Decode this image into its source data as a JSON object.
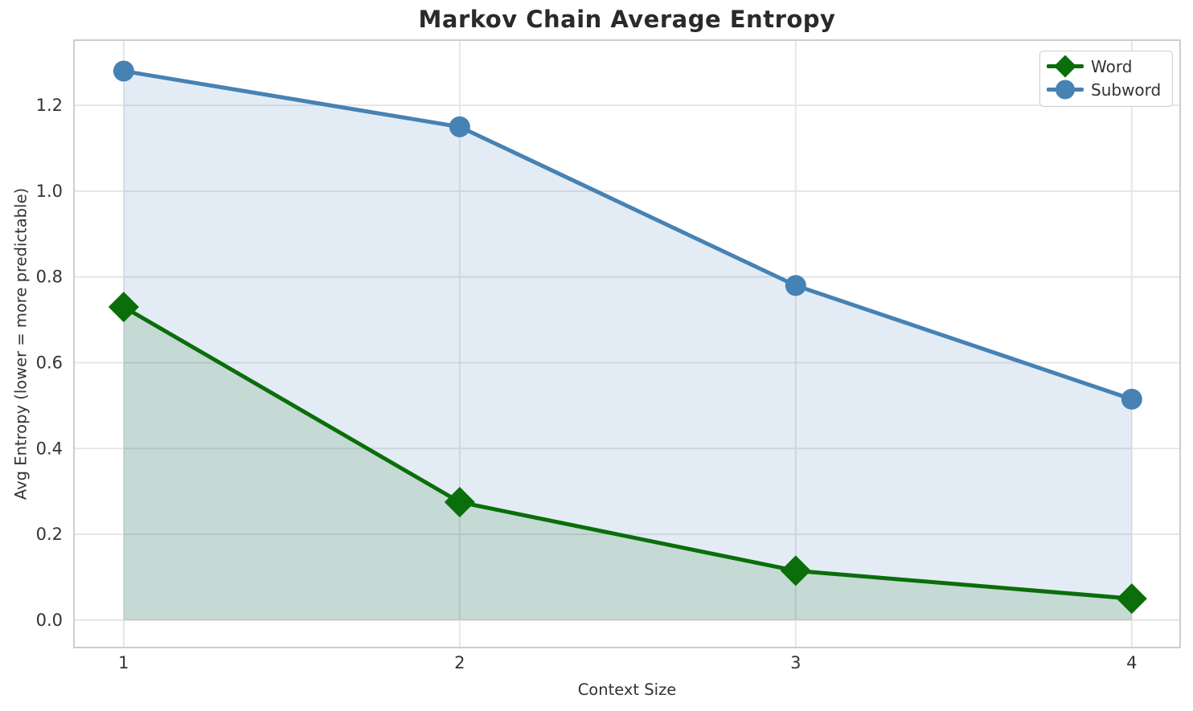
{
  "title": "Markov Chain Average Entropy",
  "chart_data": {
    "type": "line",
    "title": "Markov Chain Average Entropy",
    "xlabel": "Context Size",
    "ylabel": "Avg Entropy (lower = more predictable)",
    "x": [
      1,
      2,
      3,
      4
    ],
    "series": [
      {
        "name": "Word",
        "values": [
          0.73,
          0.275,
          0.115,
          0.05
        ],
        "color": "#0a6e0a",
        "fill_color": "rgba(0, 100, 0, 0.13)",
        "marker": "diamond",
        "area_fill": true
      },
      {
        "name": "Subword",
        "values": [
          1.28,
          1.15,
          0.78,
          0.515
        ],
        "color": "#4682b4",
        "fill_color": "rgba(70, 130, 180, 0.15)",
        "marker": "circle",
        "area_fill": true
      }
    ],
    "area_baseline": 0,
    "xlim": [
      0.852,
      4.144
    ],
    "ylim": [
      -0.064,
      1.352
    ],
    "xticks": [
      {
        "value": 1,
        "label": "1"
      },
      {
        "value": 2,
        "label": "2"
      },
      {
        "value": 3,
        "label": "3"
      },
      {
        "value": 4,
        "label": "4"
      }
    ],
    "yticks": [
      {
        "value": 0.0,
        "label": "0.0"
      },
      {
        "value": 0.2,
        "label": "0.2"
      },
      {
        "value": 0.4,
        "label": "0.4"
      },
      {
        "value": 0.6,
        "label": "0.6"
      },
      {
        "value": 0.8,
        "label": "0.8"
      },
      {
        "value": 1.0,
        "label": "1.0"
      },
      {
        "value": 1.2,
        "label": "1.2"
      }
    ],
    "grid": true,
    "legend_position": "upper right"
  },
  "style_colors": {
    "grid": "#e4e4e4",
    "spine": "#cdcdcd",
    "tick_label": "#333333",
    "title": "#2a2a2a"
  }
}
